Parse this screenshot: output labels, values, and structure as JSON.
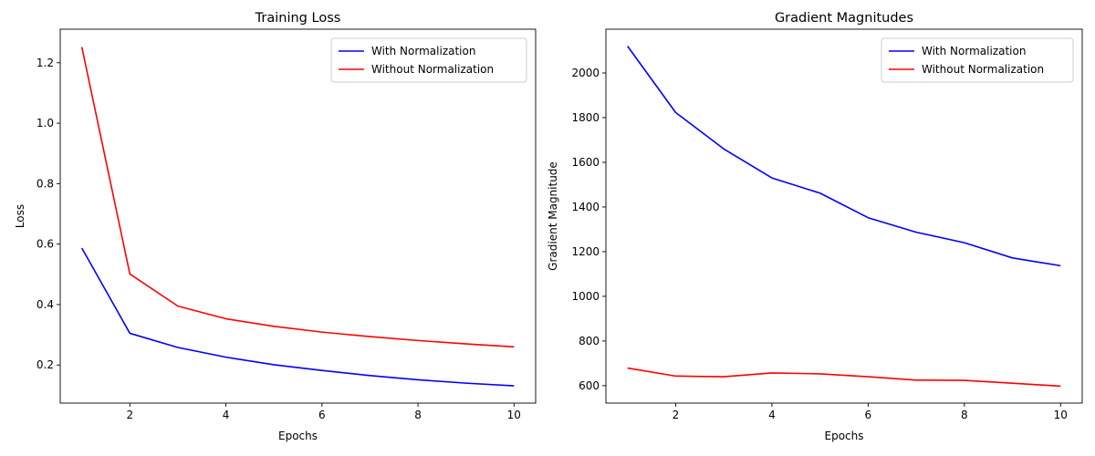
{
  "chart_data": [
    {
      "type": "line",
      "title": "Training Loss",
      "xlabel": "Epochs",
      "ylabel": "Loss",
      "x": [
        1,
        2,
        3,
        4,
        5,
        6,
        7,
        8,
        9,
        10
      ],
      "xlim": [
        0.55,
        10.45
      ],
      "ylim": [
        0.074,
        1.311
      ],
      "xticks": [
        2,
        4,
        6,
        8,
        10
      ],
      "yticks": [
        0.2,
        0.4,
        0.6,
        0.8,
        1.0,
        1.2
      ],
      "ytick_labels": [
        "0.2",
        "0.4",
        "0.6",
        "0.8",
        "1.0",
        "1.2"
      ],
      "grid": false,
      "legend_position": "top-right",
      "series": [
        {
          "name": "With Normalization",
          "color": "#0000ff",
          "values": [
            0.587,
            0.305,
            0.258,
            0.226,
            0.201,
            0.182,
            0.165,
            0.151,
            0.14,
            0.131
          ]
        },
        {
          "name": "Without Normalization",
          "color": "#ff0000",
          "values": [
            1.252,
            0.501,
            0.395,
            0.353,
            0.328,
            0.309,
            0.294,
            0.281,
            0.27,
            0.26
          ]
        }
      ]
    },
    {
      "type": "line",
      "title": "Gradient Magnitudes",
      "xlabel": "Epochs",
      "ylabel": "Gradient Magnitude",
      "x": [
        1,
        2,
        3,
        4,
        5,
        6,
        7,
        8,
        9,
        10
      ],
      "xlim": [
        0.55,
        10.45
      ],
      "ylim": [
        522,
        2196
      ],
      "xticks": [
        2,
        4,
        6,
        8,
        10
      ],
      "yticks": [
        600,
        800,
        1000,
        1200,
        1400,
        1600,
        1800,
        2000
      ],
      "ytick_labels": [
        "600",
        "800",
        "1000",
        "1200",
        "1400",
        "1600",
        "1800",
        "2000"
      ],
      "grid": false,
      "legend_position": "top-right",
      "series": [
        {
          "name": "With Normalization",
          "color": "#0000ff",
          "values": [
            2120,
            1823,
            1660,
            1530,
            1462,
            1352,
            1287,
            1240,
            1172,
            1137
          ]
        },
        {
          "name": "Without Normalization",
          "color": "#ff0000",
          "values": [
            679,
            643,
            640,
            657,
            653,
            640,
            625,
            624,
            611,
            598
          ]
        }
      ]
    }
  ]
}
